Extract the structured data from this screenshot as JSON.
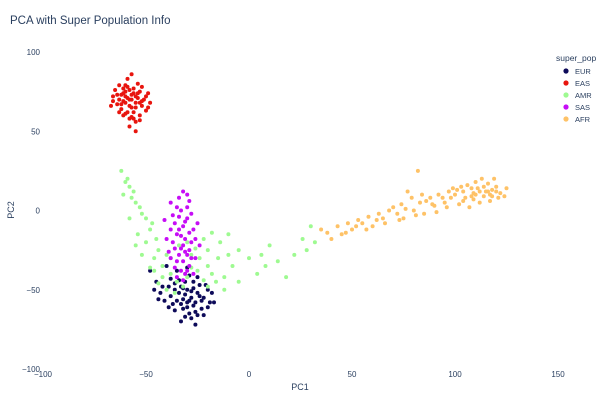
{
  "chart_data": {
    "type": "scatter",
    "title": "PCA with Super Population Info",
    "xlabel": "PC1",
    "ylabel": "PC2",
    "xlim": [
      -100,
      150
    ],
    "ylim": [
      -100,
      100
    ],
    "x_ticks": [
      "−100",
      "−50",
      "0",
      "50",
      "100",
      "150"
    ],
    "x_tick_values": [
      -100,
      -50,
      0,
      50,
      100,
      150
    ],
    "y_ticks": [
      "100",
      "50",
      "0",
      "−50",
      "−100"
    ],
    "y_tick_values": [
      100,
      50,
      0,
      -50,
      -100
    ],
    "grid": false,
    "legend": {
      "title": "super_pop",
      "placement": "top-right"
    },
    "series": [
      {
        "name": "EUR",
        "color": "#0d0a59",
        "points": [
          [
            -30,
            -50
          ],
          [
            -28,
            -55
          ],
          [
            -33,
            -48
          ],
          [
            -25,
            -52
          ],
          [
            -35,
            -57
          ],
          [
            -27,
            -60
          ],
          [
            -31,
            -45
          ],
          [
            -22,
            -55
          ],
          [
            -36,
            -50
          ],
          [
            -29,
            -65
          ],
          [
            -24,
            -47
          ],
          [
            -32,
            -62
          ],
          [
            -38,
            -54
          ],
          [
            -26,
            -58
          ],
          [
            -20,
            -50
          ],
          [
            -34,
            -44
          ],
          [
            -28,
            -68
          ],
          [
            -23,
            -62
          ],
          [
            -39,
            -48
          ],
          [
            -30,
            -58
          ],
          [
            -41,
            -57
          ],
          [
            -25,
            -42
          ],
          [
            -33,
            -70
          ],
          [
            -19,
            -58
          ],
          [
            -36,
            -63
          ],
          [
            -31,
            -53
          ],
          [
            -27,
            -49
          ],
          [
            -22,
            -66
          ],
          [
            -43,
            -52
          ],
          [
            -29,
            -41
          ],
          [
            -35,
            -38
          ],
          [
            -45,
            -45
          ],
          [
            -40,
            -35
          ],
          [
            -18,
            -52
          ],
          [
            -26,
            -72
          ],
          [
            -32,
            -56
          ],
          [
            -24,
            -54
          ],
          [
            -37,
            -59
          ],
          [
            -21,
            -47
          ],
          [
            -28,
            -51
          ],
          [
            -30,
            -61
          ],
          [
            -34,
            -52
          ],
          [
            -26,
            -64
          ],
          [
            -39,
            -61
          ],
          [
            -42,
            -48
          ],
          [
            -23,
            -57
          ],
          [
            -31,
            -67
          ],
          [
            -36,
            -46
          ],
          [
            -27,
            -45
          ],
          [
            -20,
            -61
          ],
          [
            -33,
            -59
          ],
          [
            -29,
            -57
          ],
          [
            -25,
            -66
          ],
          [
            -44,
            -56
          ],
          [
            -38,
            -43
          ],
          [
            -30,
            -36
          ],
          [
            -48,
            -38
          ],
          [
            -46,
            -50
          ],
          [
            -17,
            -58
          ],
          [
            -32,
            -49
          ]
        ]
      },
      {
        "name": "EAS",
        "color": "#e8150e",
        "points": [
          [
            -58,
            70
          ],
          [
            -55,
            72
          ],
          [
            -60,
            68
          ],
          [
            -53,
            75
          ],
          [
            -62,
            73
          ],
          [
            -57,
            65
          ],
          [
            -51,
            70
          ],
          [
            -59,
            78
          ],
          [
            -64,
            67
          ],
          [
            -56,
            62
          ],
          [
            -52,
            66
          ],
          [
            -61,
            60
          ],
          [
            -54,
            80
          ],
          [
            -66,
            72
          ],
          [
            -49,
            74
          ],
          [
            -57,
            73
          ],
          [
            -60,
            75
          ],
          [
            -55,
            68
          ],
          [
            -63,
            70
          ],
          [
            -58,
            58
          ],
          [
            -50,
            63
          ],
          [
            -65,
            76
          ],
          [
            -53,
            60
          ],
          [
            -59,
            83
          ],
          [
            -56,
            77
          ],
          [
            -67,
            66
          ],
          [
            -48,
            68
          ],
          [
            -62,
            64
          ],
          [
            -55,
            56
          ],
          [
            -60,
            72
          ],
          [
            -54,
            71
          ],
          [
            -58,
            66
          ],
          [
            -52,
            78
          ],
          [
            -61,
            69
          ],
          [
            -57,
            86
          ],
          [
            -63,
            79
          ],
          [
            -59,
            62
          ],
          [
            -50,
            72
          ],
          [
            -56,
            58
          ],
          [
            -64,
            73
          ],
          [
            -53,
            68
          ],
          [
            -58,
            53
          ],
          [
            -61,
            77
          ],
          [
            -55,
            65
          ],
          [
            -62,
            67
          ],
          [
            -57,
            70
          ],
          [
            -49,
            65
          ],
          [
            -60,
            61
          ],
          [
            -54,
            74
          ],
          [
            -59,
            71
          ],
          [
            -56,
            74
          ],
          [
            -52,
            69
          ],
          [
            -66,
            69
          ],
          [
            -58,
            76
          ],
          [
            -55,
            50
          ],
          [
            -63,
            62
          ],
          [
            -57,
            59
          ],
          [
            -61,
            74
          ],
          [
            -53,
            57
          ],
          [
            -60,
            79
          ]
        ]
      },
      {
        "name": "AMR",
        "color": "#9efa91",
        "points": [
          [
            -62,
            25
          ],
          [
            -60,
            18
          ],
          [
            -58,
            15
          ],
          [
            -61,
            10
          ],
          [
            -57,
            8
          ],
          [
            -55,
            5
          ],
          [
            -59,
            20
          ],
          [
            -56,
            12
          ],
          [
            -53,
            2
          ],
          [
            -50,
            -5
          ],
          [
            -48,
            -12
          ],
          [
            -45,
            -18
          ],
          [
            -52,
            -2
          ],
          [
            -47,
            -8
          ],
          [
            -54,
            -15
          ],
          [
            -44,
            -25
          ],
          [
            -40,
            -28
          ],
          [
            -46,
            -30
          ],
          [
            -42,
            -35
          ],
          [
            -38,
            -40
          ],
          [
            -35,
            -45
          ],
          [
            -30,
            -42
          ],
          [
            -25,
            -38
          ],
          [
            -20,
            -35
          ],
          [
            -18,
            -40
          ],
          [
            -15,
            -30
          ],
          [
            -10,
            -28
          ],
          [
            -8,
            -35
          ],
          [
            -5,
            -45
          ],
          [
            -12,
            -42
          ],
          [
            -16,
            -45
          ],
          [
            -22,
            -44
          ],
          [
            -28,
            -36
          ],
          [
            -24,
            -30
          ],
          [
            -20,
            -25
          ],
          [
            -14,
            -20
          ],
          [
            -10,
            -15
          ],
          [
            -5,
            -25
          ],
          [
            0,
            -30
          ],
          [
            4,
            -40
          ],
          [
            8,
            -35
          ],
          [
            6,
            -28
          ],
          [
            10,
            -22
          ],
          [
            14,
            -32
          ],
          [
            18,
            -42
          ],
          [
            22,
            -28
          ],
          [
            26,
            -18
          ],
          [
            30,
            -10
          ],
          [
            28,
            -25
          ],
          [
            32,
            -20
          ],
          [
            -50,
            -20
          ],
          [
            -48,
            -36
          ],
          [
            -52,
            -28
          ],
          [
            -44,
            -46
          ],
          [
            -40,
            -50
          ],
          [
            -36,
            -52
          ],
          [
            -32,
            -48
          ],
          [
            -38,
            -30
          ],
          [
            -34,
            -22
          ],
          [
            -30,
            -20
          ],
          [
            -26,
            -24
          ],
          [
            -22,
            -18
          ],
          [
            -18,
            -14
          ],
          [
            -58,
            -5
          ],
          [
            -55,
            -22
          ],
          [
            -42,
            -42
          ],
          [
            -46,
            -38
          ],
          [
            -28,
            -28
          ],
          [
            -20,
            -48
          ],
          [
            -12,
            -50
          ]
        ]
      },
      {
        "name": "SAS",
        "color": "#c60df6",
        "points": [
          [
            -32,
            -10
          ],
          [
            -30,
            -5
          ],
          [
            -35,
            -15
          ],
          [
            -28,
            -20
          ],
          [
            -33,
            0
          ],
          [
            -36,
            -8
          ],
          [
            -29,
            -25
          ],
          [
            -31,
            -18
          ],
          [
            -38,
            -12
          ],
          [
            -34,
            -28
          ],
          [
            -27,
            -12
          ],
          [
            -32,
            -22
          ],
          [
            -30,
            2
          ],
          [
            -37,
            -3
          ],
          [
            -26,
            -30
          ],
          [
            -35,
            -32
          ],
          [
            -33,
            -38
          ],
          [
            -29,
            -35
          ],
          [
            -31,
            -40
          ],
          [
            -36,
            -24
          ],
          [
            -40,
            -18
          ],
          [
            -25,
            -8
          ],
          [
            -38,
            5
          ],
          [
            -34,
            8
          ],
          [
            -30,
            10
          ],
          [
            -32,
            12
          ],
          [
            -28,
            -2
          ],
          [
            -41,
            -6
          ],
          [
            -27,
            -40
          ],
          [
            -35,
            -42
          ],
          [
            -33,
            -16
          ],
          [
            -30,
            -28
          ],
          [
            -37,
            -20
          ],
          [
            -34,
            -4
          ],
          [
            -29,
            -14
          ],
          [
            -32,
            -32
          ],
          [
            -26,
            -18
          ],
          [
            -39,
            -26
          ],
          [
            -31,
            -7
          ],
          [
            -36,
            -36
          ],
          [
            -28,
            -30
          ],
          [
            -33,
            -24
          ],
          [
            -30,
            -38
          ],
          [
            -35,
            2
          ],
          [
            -32,
            -44
          ],
          [
            -38,
            -30
          ],
          [
            -24,
            -22
          ],
          [
            -29,
            6
          ],
          [
            -34,
            -12
          ],
          [
            -31,
            -26
          ]
        ]
      },
      {
        "name": "AFR",
        "color": "#fec267",
        "points": [
          [
            110,
            10
          ],
          [
            115,
            12
          ],
          [
            105,
            8
          ],
          [
            120,
            15
          ],
          [
            112,
            5
          ],
          [
            108,
            14
          ],
          [
            118,
            9
          ],
          [
            100,
            10
          ],
          [
            95,
            5
          ],
          [
            90,
            3
          ],
          [
            85,
            -2
          ],
          [
            80,
            0
          ],
          [
            75,
            -5
          ],
          [
            70,
            2
          ],
          [
            65,
            -5
          ],
          [
            60,
            -10
          ],
          [
            55,
            -8
          ],
          [
            50,
            -12
          ],
          [
            45,
            -15
          ],
          [
            40,
            -18
          ],
          [
            122,
            11
          ],
          [
            125,
            14
          ],
          [
            116,
            17
          ],
          [
            113,
            20
          ],
          [
            110,
            18
          ],
          [
            104,
            12
          ],
          [
            98,
            8
          ],
          [
            102,
            4
          ],
          [
            107,
            2
          ],
          [
            117,
            6
          ],
          [
            121,
            8
          ],
          [
            124,
            9
          ],
          [
            119,
            20
          ],
          [
            114,
            15
          ],
          [
            109,
            11
          ],
          [
            103,
            15
          ],
          [
            97,
            12
          ],
          [
            92,
            10
          ],
          [
            88,
            8
          ],
          [
            83,
            5
          ],
          [
            79,
            8
          ],
          [
            74,
            4
          ],
          [
            68,
            0
          ],
          [
            63,
            -2
          ],
          [
            58,
            -4
          ],
          [
            53,
            -6
          ],
          [
            48,
            -8
          ],
          [
            43,
            -10
          ],
          [
            38,
            -14
          ],
          [
            35,
            -12
          ],
          [
            111,
            14
          ],
          [
            106,
            16
          ],
          [
            101,
            13
          ],
          [
            96,
            2
          ],
          [
            91,
            -1
          ],
          [
            86,
            6
          ],
          [
            81,
            -3
          ],
          [
            76,
            1
          ],
          [
            72,
            -2
          ],
          [
            66,
            -8
          ],
          [
            62,
            -6
          ],
          [
            57,
            -12
          ],
          [
            52,
            -10
          ],
          [
            47,
            -14
          ],
          [
            118,
            13
          ],
          [
            114,
            9
          ],
          [
            109,
            7
          ],
          [
            104,
            6
          ],
          [
            99,
            14
          ],
          [
            94,
            8
          ],
          [
            89,
            4
          ],
          [
            84,
            10
          ],
          [
            77,
            12
          ],
          [
            82,
            25
          ],
          [
            73,
            -6
          ],
          [
            116,
            12
          ],
          [
            112,
            12
          ],
          [
            108,
            9
          ],
          [
            120,
            12
          ],
          [
            117,
            10
          ]
        ]
      }
    ]
  }
}
